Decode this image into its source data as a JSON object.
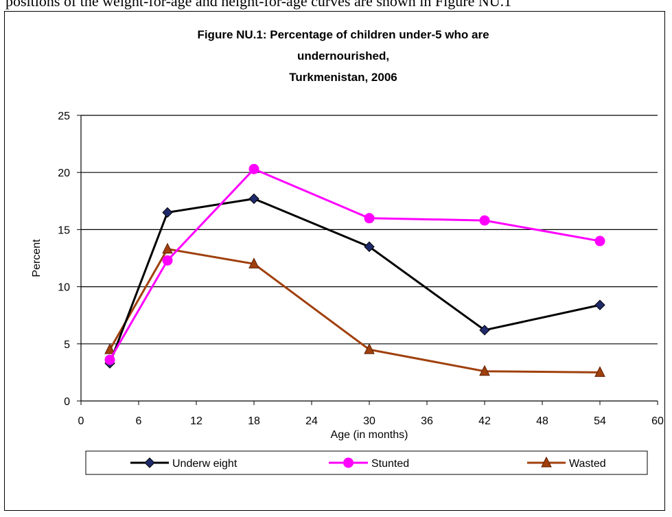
{
  "page": {
    "top_text": "positions of the weight-for-age and height-for-age curves are shown in Figure NU.1"
  },
  "chart_data": {
    "type": "line",
    "title_lines": [
      "Figure NU.1: Percentage of children under-5 who are",
      "undernourished,",
      "Turkmenistan, 2006"
    ],
    "xlabel": "Age (in months)",
    "ylabel": "Percent",
    "xlim": [
      0,
      60
    ],
    "ylim": [
      0,
      25
    ],
    "x_ticks": [
      0,
      6,
      12,
      18,
      24,
      30,
      36,
      42,
      48,
      54,
      60
    ],
    "y_ticks": [
      0,
      5,
      10,
      15,
      20,
      25
    ],
    "grid": "horizontal",
    "legend_position": "bottom",
    "series": [
      {
        "name": "Underw eight",
        "color": "#000000",
        "marker_color": "#1f2a6b",
        "marker": "diamond",
        "x": [
          3,
          9,
          18,
          30,
          42,
          54
        ],
        "y": [
          3.3,
          16.5,
          17.7,
          13.5,
          6.2,
          8.4
        ]
      },
      {
        "name": "Stunted",
        "color": "#ff00ff",
        "marker_color": "#ff00ff",
        "marker": "circle",
        "x": [
          3,
          9,
          18,
          30,
          42,
          54
        ],
        "y": [
          3.6,
          12.3,
          20.3,
          16.0,
          15.8,
          14.0
        ]
      },
      {
        "name": "Wasted",
        "color": "#a0400d",
        "marker_color": "#a0400d",
        "marker": "triangle",
        "x": [
          3,
          9,
          18,
          30,
          42,
          54
        ],
        "y": [
          4.5,
          13.3,
          12.0,
          4.5,
          2.6,
          2.5
        ]
      }
    ]
  }
}
